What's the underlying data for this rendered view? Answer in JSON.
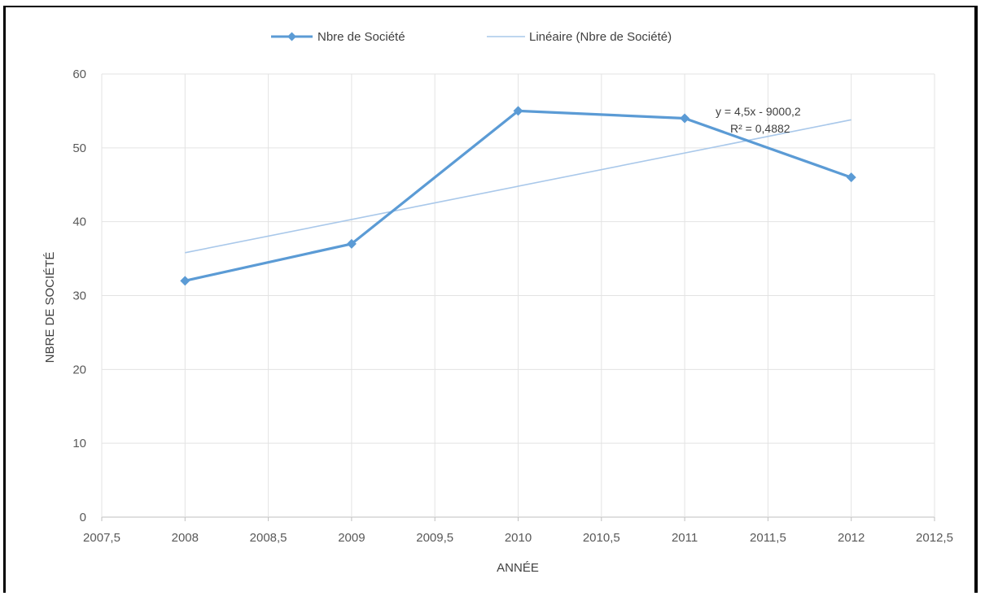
{
  "chart_data": {
    "type": "line",
    "title": "",
    "xlabel": "ANNÉE",
    "ylabel": "NBRE DE SOCIÉTÉ",
    "xlim": [
      2007.5,
      2012.5
    ],
    "ylim": [
      0,
      60
    ],
    "x_ticks": [
      "2007,5",
      "2008",
      "2008,5",
      "2009",
      "2009,5",
      "2010",
      "2010,5",
      "2011",
      "2011,5",
      "2012",
      "2012,5"
    ],
    "y_ticks": [
      "0",
      "10",
      "20",
      "30",
      "40",
      "50",
      "60"
    ],
    "grid": true,
    "legend_position": "top",
    "series": [
      {
        "name": "Nbre de Société",
        "color": "#5b9bd5",
        "marker": "diamond",
        "x": [
          2008,
          2009,
          2010,
          2011,
          2012
        ],
        "values": [
          32,
          37,
          55,
          54,
          46
        ]
      },
      {
        "name": "Linéaire (Nbre de Société)",
        "color": "#a9c8ea",
        "kind": "trendline",
        "x": [
          2008,
          2012
        ],
        "values": [
          35.8,
          53.8
        ]
      }
    ],
    "annotations": {
      "equation": "y = 4,5x - 9000,2",
      "r_squared": "R² = 0,4882"
    }
  }
}
